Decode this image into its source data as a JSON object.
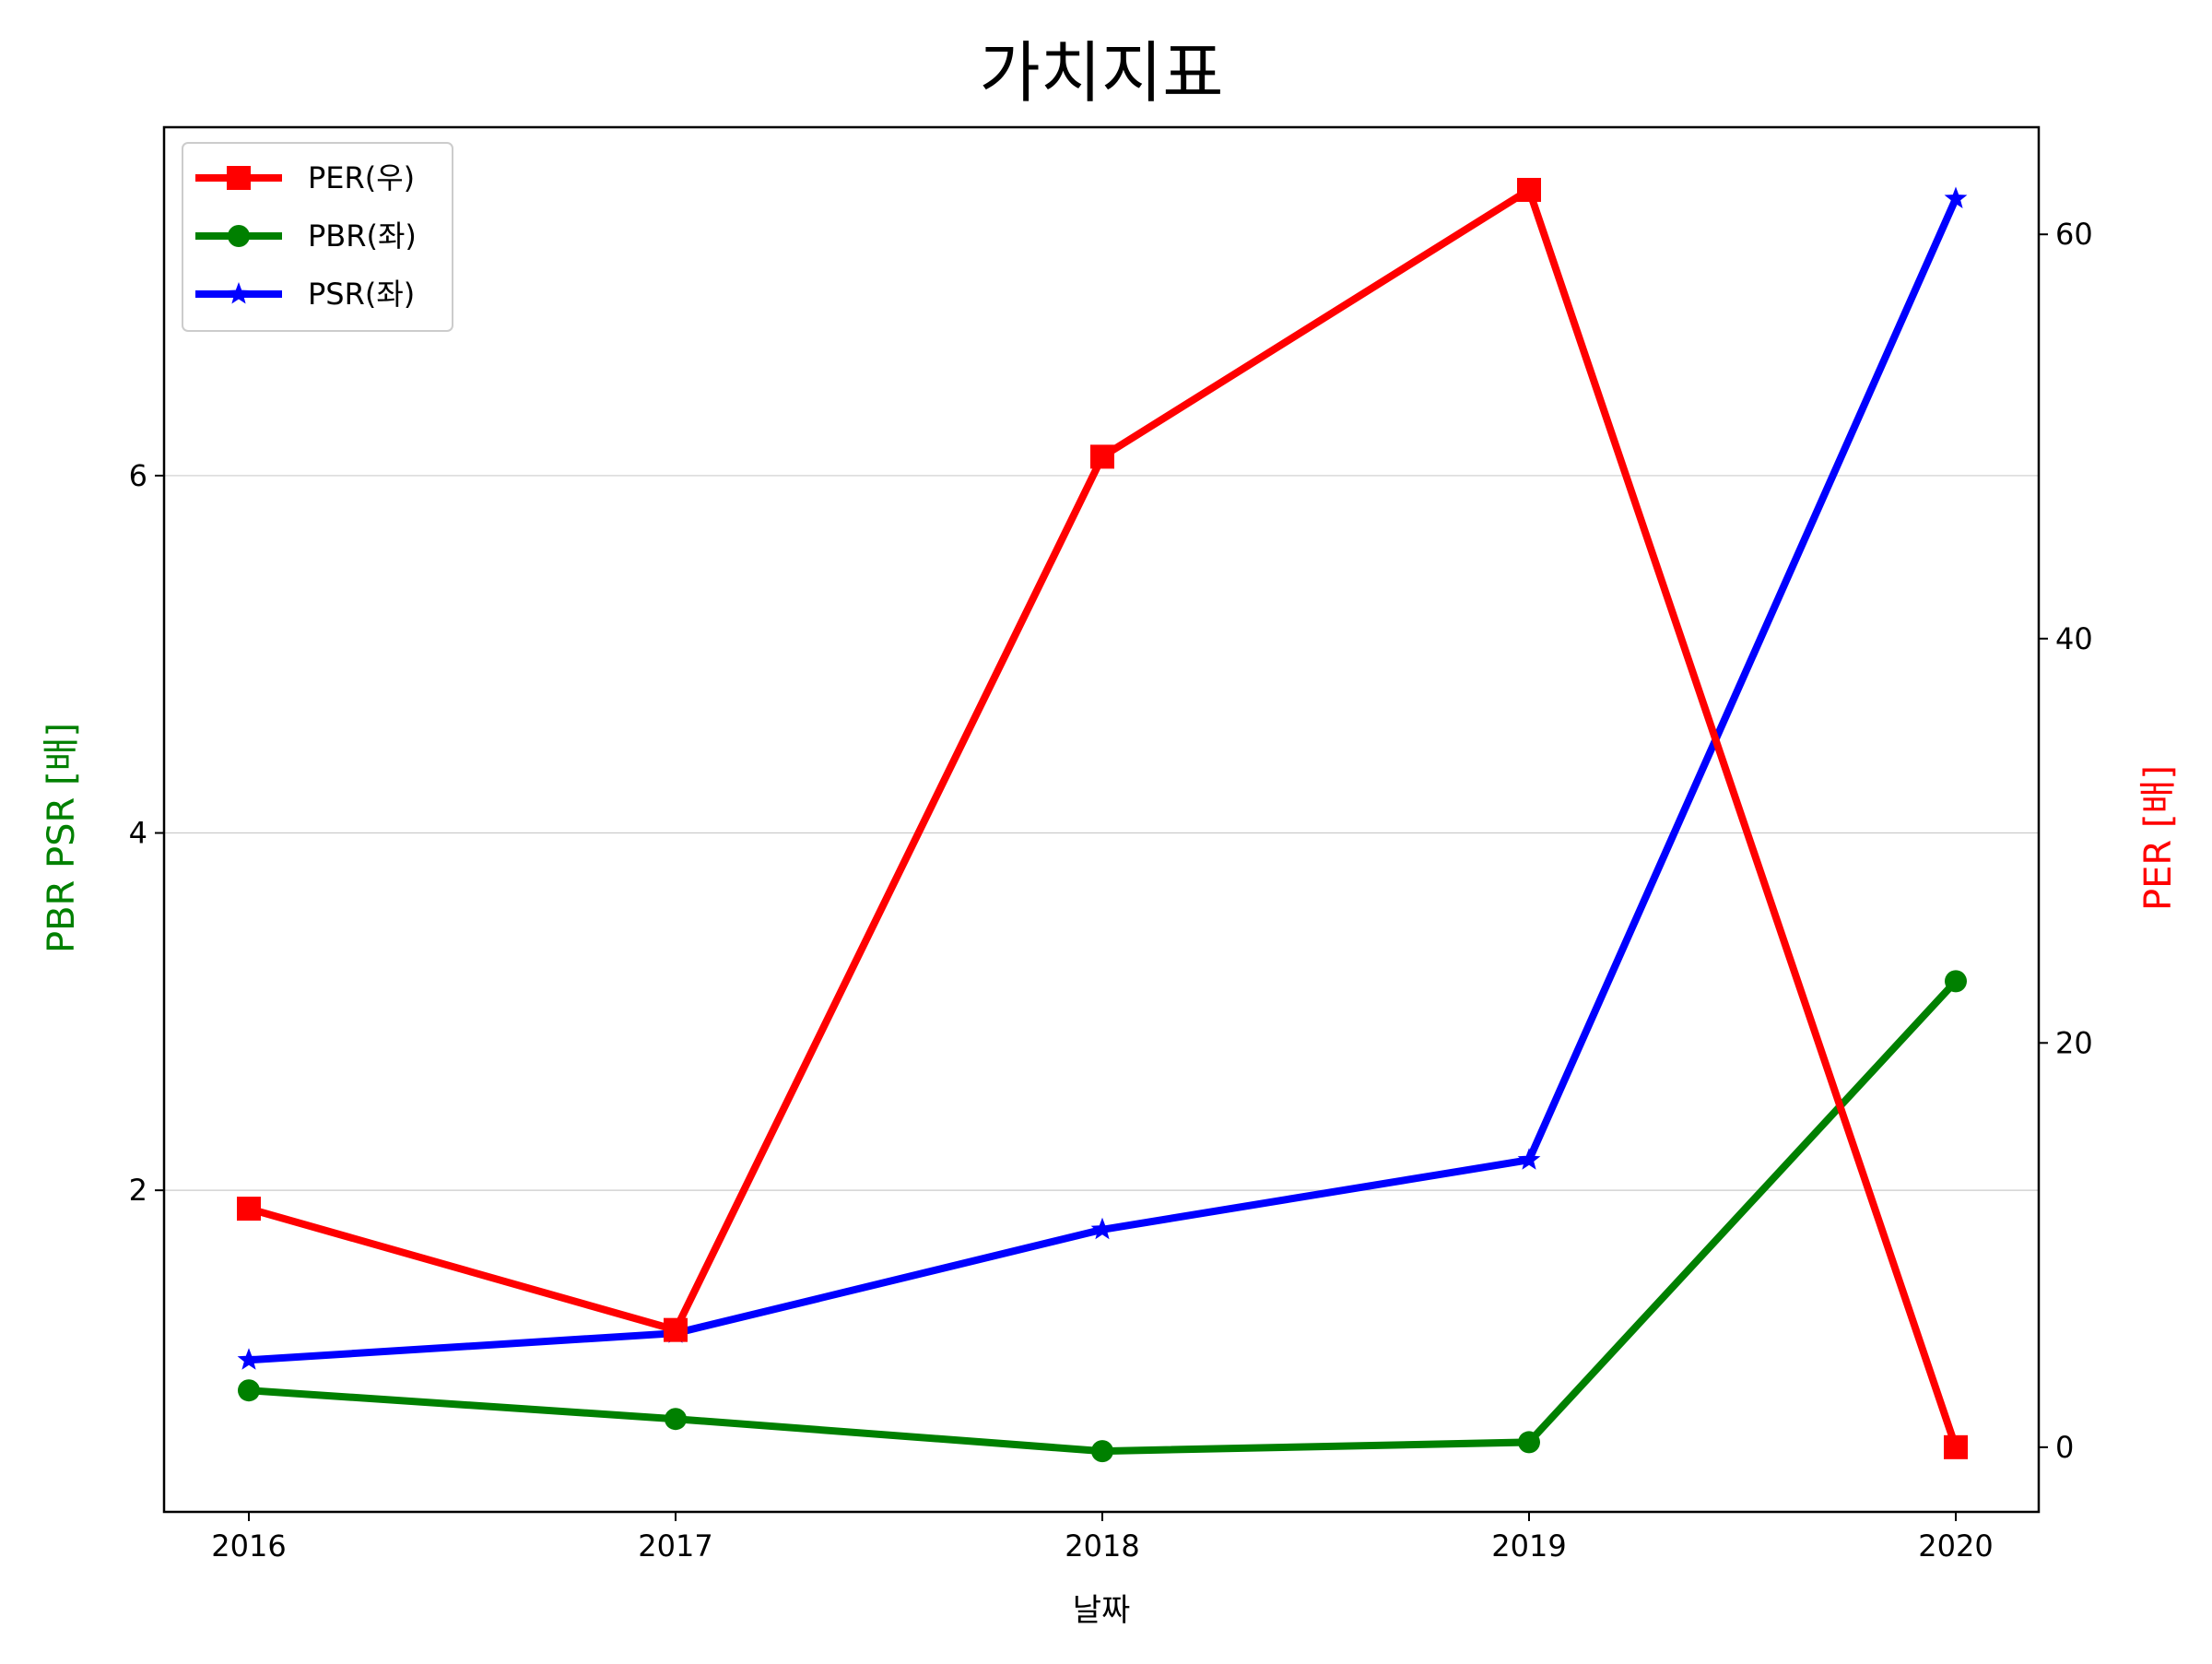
{
  "chart_data": {
    "type": "line",
    "title": "가치지표",
    "xlabel": "날짜",
    "ylabel_left": "PBR PSR [배]",
    "ylabel_right": "PER [배]",
    "categories": [
      "2016",
      "2017",
      "2018",
      "2019",
      "2020"
    ],
    "left_yticks": [
      2,
      4,
      6
    ],
    "right_yticks": [
      0,
      20,
      40,
      60
    ],
    "left_ylim": [
      0.2,
      7.95
    ],
    "right_ylim": [
      -3.2,
      65.3
    ],
    "grid": "horizontal (left axis)",
    "legend_position": "top-left",
    "series": [
      {
        "name": "PER(우)",
        "axis": "right",
        "color": "#ff0000",
        "marker": "square",
        "values": [
          11.8,
          5.8,
          49.0,
          62.2,
          0.0
        ]
      },
      {
        "name": "PBR(좌)",
        "axis": "left",
        "color": "#008000",
        "marker": "circle",
        "values": [
          0.88,
          0.72,
          0.54,
          0.59,
          3.17
        ]
      },
      {
        "name": "PSR(좌)",
        "axis": "left",
        "color": "#0000ff",
        "marker": "star",
        "values": [
          1.05,
          1.2,
          1.78,
          2.17,
          7.55
        ]
      }
    ],
    "colors": {
      "left_axis_label": "#008000",
      "right_axis_label": "#ff0000",
      "grid": "#cccccc"
    }
  }
}
